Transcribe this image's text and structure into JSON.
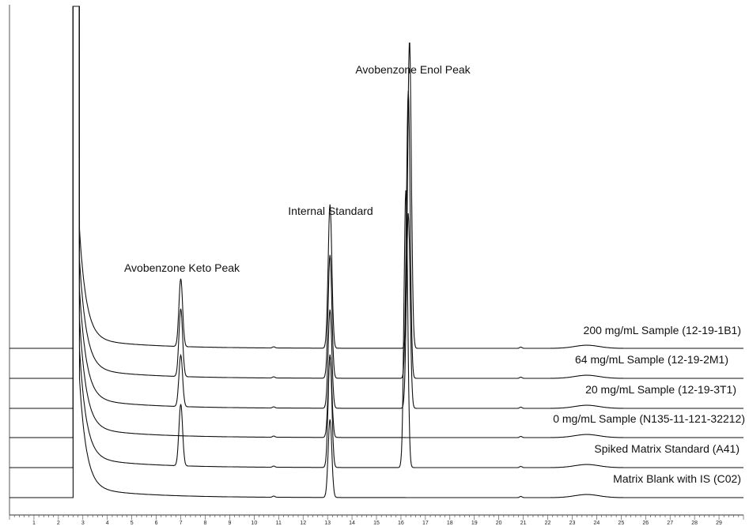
{
  "chart_data": {
    "type": "line",
    "title": "",
    "xlabel": "",
    "ylabel": "",
    "xlim": [
      0,
      30
    ],
    "grid": false,
    "x_ticks": [
      1,
      2,
      3,
      4,
      5,
      6,
      7,
      8,
      9,
      10,
      11,
      12,
      13,
      14,
      15,
      16,
      17,
      18,
      19,
      20,
      21,
      22,
      23,
      24,
      25,
      26,
      27,
      28,
      29
    ],
    "peak_annotations": [
      {
        "text": "Avobenzone Keto Peak",
        "x": 7.0
      },
      {
        "text": "Internal Standard",
        "x": 13.1
      },
      {
        "text": "Avobenzone Enol Peak",
        "x": 16.3
      }
    ],
    "series": [
      {
        "name": "200 mg/mL Sample (12-19-1B1)",
        "peaks": [
          {
            "x": 7.0,
            "height": 0.33
          },
          {
            "x": 13.1,
            "height": 0.7
          },
          {
            "x": 16.35,
            "height": 1.5
          }
        ]
      },
      {
        "name": "64 mg/mL Sample (12-19-2M1)",
        "peaks": [
          {
            "x": 7.0,
            "height": 0.33
          },
          {
            "x": 13.1,
            "height": 0.6
          },
          {
            "x": 16.3,
            "height": 1.4
          }
        ]
      },
      {
        "name": "20 mg/mL Sample (12-19-3T1)",
        "peaks": [
          {
            "x": 7.0,
            "height": 0.25
          },
          {
            "x": 13.1,
            "height": 0.48
          },
          {
            "x": 16.3,
            "height": 0.95
          }
        ]
      },
      {
        "name": "0 mg/mL Sample (N135-11-121-32212)",
        "peaks": [
          {
            "x": 13.1,
            "height": 0.4
          }
        ]
      },
      {
        "name": "Spiked Matrix Standard (A41)",
        "peaks": [
          {
            "x": 7.0,
            "height": 0.3
          },
          {
            "x": 13.1,
            "height": 0.55
          },
          {
            "x": 16.2,
            "height": 1.35
          }
        ]
      },
      {
        "name": "Matrix Blank with IS (C02)",
        "peaks": [
          {
            "x": 13.1,
            "height": 0.38
          }
        ]
      }
    ]
  }
}
